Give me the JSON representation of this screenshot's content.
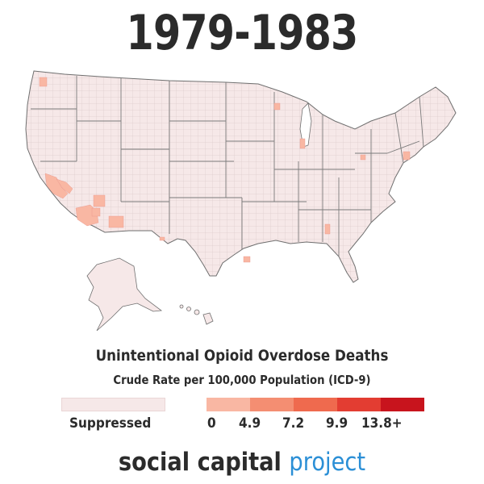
{
  "title": "1979-1983",
  "legend": {
    "title": "Unintentional Opioid Overdose Deaths",
    "subtitle": "Crude Rate per 100,000 Population (ICD-9)",
    "suppressed_label": "Suppressed",
    "suppressed_color": "#f6e8e8",
    "bin_colors": [
      "#f9b7a3",
      "#f48e72",
      "#ef6a4e",
      "#e33d32",
      "#c8141d"
    ],
    "tick_labels": [
      "0",
      "4.9",
      "7.2",
      "9.9",
      "13.8+"
    ]
  },
  "map": {
    "base_color": "#f6e8e8",
    "border_color": "#8a8a8a",
    "highlight_color": "#f9b7a3"
  },
  "brand": {
    "word1": "social capital",
    "word2": "project",
    "accent_color": "#2b8fd6"
  }
}
